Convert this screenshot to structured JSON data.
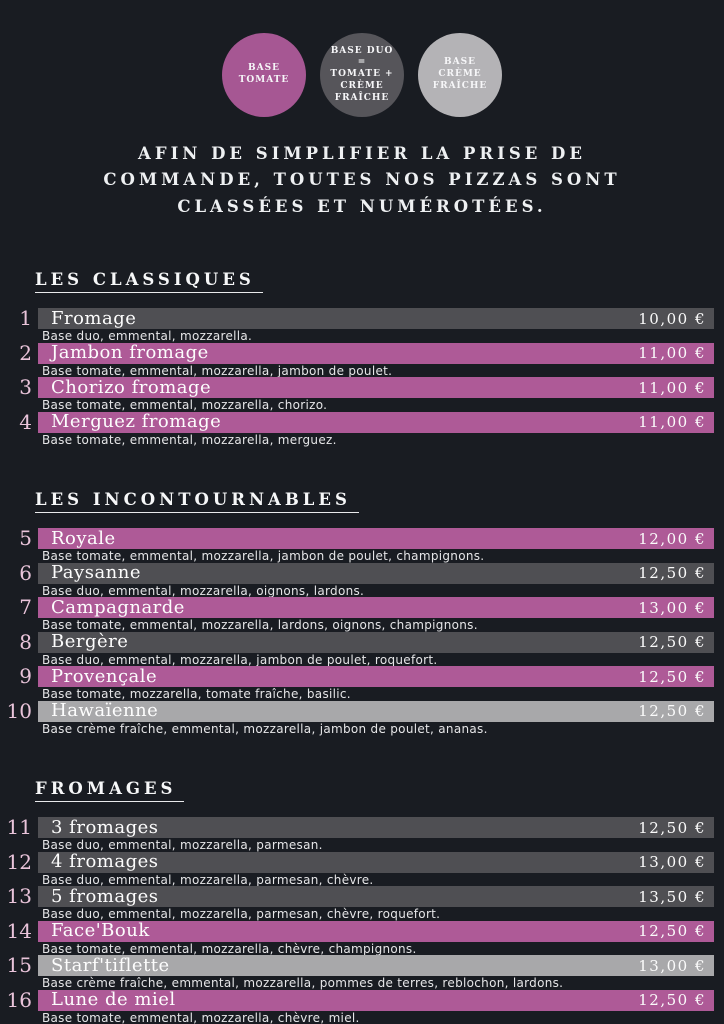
{
  "page": {
    "background_color": "#191c22"
  },
  "legend": {
    "circles": [
      {
        "name": "base-tomate-circle",
        "label": "BASE\nTOMATE",
        "color": "#a65793"
      },
      {
        "name": "base-duo-circle",
        "label": "BASE DUO\n=\nTOMATE +\nCRÈME\nFRAÎCHE",
        "color": "#56555a"
      },
      {
        "name": "base-creme-circle",
        "label": "BASE\nCRÈME\nFRAÎCHE",
        "color": "#b4b3b6"
      }
    ]
  },
  "intro": {
    "text": "AFIN DE SIMPLIFIER LA PRISE DE\nCOMMANDE, TOUTES NOS PIZZAS SONT\nCLASSÉES ET NUMÉROTÉES."
  },
  "colors": {
    "tomate": "#ae5a97",
    "duo": "#4f4f53",
    "creme": "#a8a8aa"
  },
  "sections": [
    {
      "title": "LES CLASSIQUES",
      "items": [
        {
          "num": "1",
          "name": "Fromage",
          "price": "10,00 €",
          "base": "duo",
          "desc": "Base duo, emmental, mozzarella."
        },
        {
          "num": "2",
          "name": "Jambon fromage",
          "price": "11,00 €",
          "base": "tomate",
          "desc": "Base tomate, emmental, mozzarella, jambon de poulet."
        },
        {
          "num": "3",
          "name": "Chorizo fromage",
          "price": "11,00 €",
          "base": "tomate",
          "desc": "Base tomate, emmental, mozzarella, chorizo."
        },
        {
          "num": "4",
          "name": "Merguez fromage",
          "price": "11,00 €",
          "base": "tomate",
          "desc": "Base tomate, emmental, mozzarella, merguez."
        }
      ]
    },
    {
      "title": "LES INCONTOURNABLES",
      "items": [
        {
          "num": "5",
          "name": "Royale",
          "price": "12,00 €",
          "base": "tomate",
          "desc": "Base tomate, emmental, mozzarella, jambon de poulet, champignons."
        },
        {
          "num": "6",
          "name": "Paysanne",
          "price": "12,50 €",
          "base": "duo",
          "desc": "Base duo, emmental, mozzarella, oignons, lardons."
        },
        {
          "num": "7",
          "name": "Campagnarde",
          "price": "13,00 €",
          "base": "tomate",
          "desc": "Base tomate, emmental, mozzarella, lardons, oignons, champignons."
        },
        {
          "num": "8",
          "name": "Bergère",
          "price": "12,50 €",
          "base": "duo",
          "desc": "Base duo, emmental, mozzarella, jambon de poulet, roquefort."
        },
        {
          "num": "9",
          "name": "Provençale",
          "price": "12,50 €",
          "base": "tomate",
          "desc": "Base tomate, mozzarella, tomate fraîche, basilic."
        },
        {
          "num": "10",
          "name": "Hawaïenne",
          "price": "12,50 €",
          "base": "creme",
          "desc": "Base crème fraîche, emmental, mozzarella, jambon de poulet, ananas."
        }
      ]
    },
    {
      "title": "FROMAGES",
      "items": [
        {
          "num": "11",
          "name": "3 fromages",
          "price": "12,50 €",
          "base": "duo",
          "desc": "Base duo, emmental, mozzarella, parmesan."
        },
        {
          "num": "12",
          "name": "4 fromages",
          "price": "13,00 €",
          "base": "duo",
          "desc": "Base duo, emmental, mozzarella, parmesan, chèvre."
        },
        {
          "num": "13",
          "name": "5 fromages",
          "price": "13,50 €",
          "base": "duo",
          "desc": "Base duo, emmental, mozzarella, parmesan, chèvre, roquefort."
        },
        {
          "num": "14",
          "name": "Face'Bouk",
          "price": "12,50 €",
          "base": "tomate",
          "desc": "Base tomate, emmental, mozzarella, chèvre, champignons."
        },
        {
          "num": "15",
          "name": "Starf'tiflette",
          "price": "13,00 €",
          "base": "creme",
          "desc": "Base crème fraîche, emmental, mozzarella, pommes de terres, reblochon, lardons."
        },
        {
          "num": "16",
          "name": "Lune de miel",
          "price": "12,50 €",
          "base": "tomate",
          "desc": "Base tomate, emmental, mozzarella, chèvre, miel."
        }
      ]
    }
  ]
}
